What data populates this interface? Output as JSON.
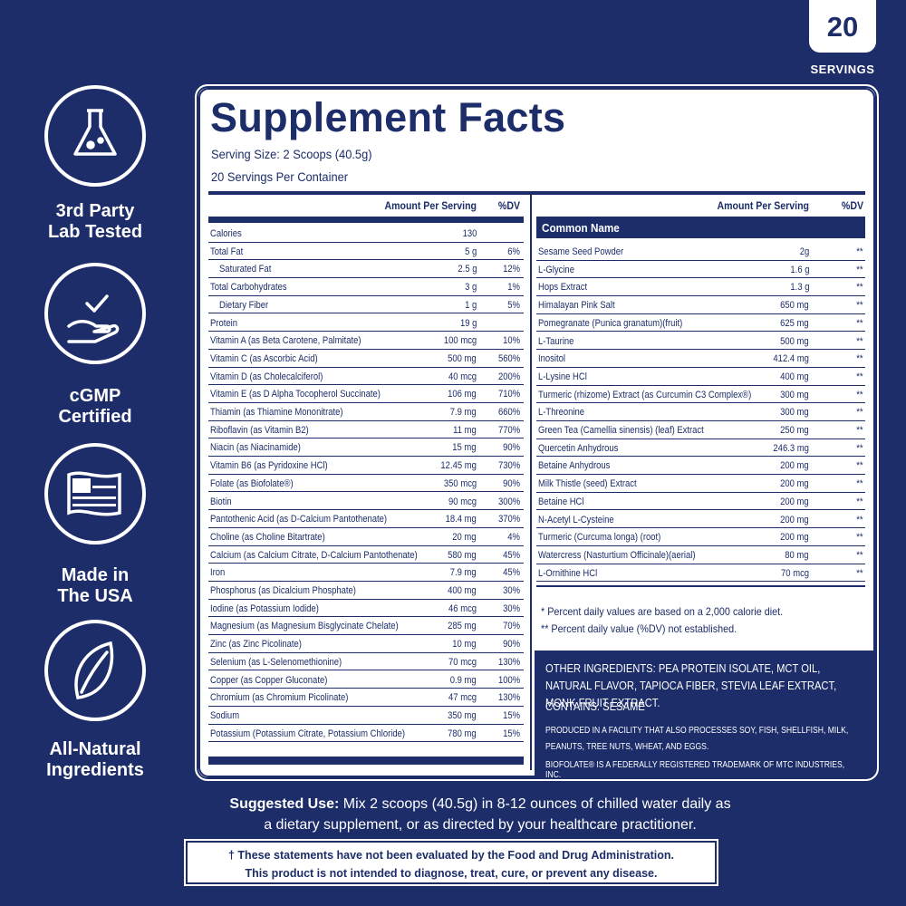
{
  "badge": {
    "number": "20",
    "label": "SERVINGS"
  },
  "features": [
    {
      "lines": [
        "3rd Party",
        "Lab Tested"
      ]
    },
    {
      "lines": [
        "cGMP",
        "Certified"
      ]
    },
    {
      "lines": [
        "Made in",
        "The USA"
      ]
    },
    {
      "lines": [
        "All-Natural",
        "Ingredients"
      ]
    }
  ],
  "facts": {
    "title": "Supplement Facts",
    "serving_size": "Serving Size: 2 Scoops (40.5g)",
    "servings_per_container": "20 Servings Per Container",
    "left_table": {
      "header": [
        "Amount Per Serving",
        "%DV"
      ],
      "rows": [
        [
          "Calories",
          "130"
        ],
        [
          "Total Fat",
          "5 g",
          "6%"
        ],
        [
          "Saturated Fat",
          "2.5 g",
          "12%"
        ],
        [
          "Total Carbohydrates",
          "3 g",
          "1%"
        ],
        [
          "Dietary Fiber",
          "1 g",
          "5%"
        ],
        [
          "Protein",
          "19 g"
        ],
        [
          "Vitamin A (as Beta Carotene, Palmitate)",
          "100 mcg",
          "10%"
        ],
        [
          "Vitamin C (as Ascorbic Acid)",
          "500 mg",
          "560%"
        ],
        [
          "Vitamin D (as Cholecalciferol)",
          "40 mcg",
          "200%"
        ],
        [
          "Vitamin E (as D Alpha Tocopherol Succinate)",
          "106 mg",
          "710%"
        ],
        [
          "Thiamin (as Thiamine Mononitrate)",
          "7.9 mg",
          "660%"
        ],
        [
          "Riboflavin (as Vitamin B2)",
          "11 mg",
          "770%"
        ],
        [
          "Niacin (as Niacinamide)",
          "15 mg",
          "90%"
        ],
        [
          "Vitamin B6 (as Pyridoxine HCl)",
          "12.45 mg",
          "730%"
        ],
        [
          "Folate (as Biofolate®)",
          "350 mcg",
          "90%"
        ],
        [
          "Biotin",
          "90 mcg",
          "300%"
        ],
        [
          "Pantothenic Acid (as D-Calcium Pantothenate)",
          "18.4 mg",
          "370%"
        ],
        [
          "Choline (as Choline Bitartrate)",
          "20 mg",
          "4%"
        ],
        [
          "Calcium (as Calcium Citrate, D-Calcium Pantothenate)",
          "580 mg",
          "45%"
        ],
        [
          "Iron",
          "7.9 mg",
          "45%"
        ],
        [
          "Phosphorus (as Dicalcium Phosphate)",
          "400 mg",
          "30%"
        ],
        [
          "Iodine (as Potassium Iodide)",
          "46 mcg",
          "30%"
        ],
        [
          "Magnesium (as Magnesium Bisglycinate Chelate)",
          "285 mg",
          "70%"
        ],
        [
          "Zinc (as Zinc Picolinate)",
          "10 mg",
          "90%"
        ],
        [
          "Selenium (as L-Selenomethionine)",
          "70 mcg",
          "130%"
        ],
        [
          "Copper (as Copper Gluconate)",
          "0.9 mg",
          "100%"
        ],
        [
          "Chromium (as Chromium Picolinate)",
          "47 mcg",
          "130%"
        ],
        [
          "Sodium",
          "350 mg",
          "15%"
        ],
        [
          "Potassium (Potassium Citrate, Potassium Chloride)",
          "780 mg",
          "15%"
        ]
      ]
    },
    "right_table": {
      "header": [
        "Amount Per Serving",
        "%DV"
      ],
      "subheader": "Common Name",
      "rows": [
        [
          "Sesame Seed Powder",
          "2g",
          "**"
        ],
        [
          "L-Glycine",
          "1.6 g",
          "**"
        ],
        [
          "Hops Extract",
          "1.3 g",
          "**"
        ],
        [
          "Himalayan Pink Salt",
          "650 mg",
          "**"
        ],
        [
          "Pomegranate (Punica granatum)(fruit)",
          "625 mg",
          "**"
        ],
        [
          "L-Taurine",
          "500 mg",
          "**"
        ],
        [
          "Inositol",
          "412.4 mg",
          "**"
        ],
        [
          "L-Lysine HCl",
          "400 mg",
          "**"
        ],
        [
          "Turmeric (rhizome) Extract (as Curcumin C3 Complex®)",
          "300 mg",
          "**"
        ],
        [
          "L-Threonine",
          "300 mg",
          "**"
        ],
        [
          "Green Tea (Camellia sinensis) (leaf) Extract",
          "250 mg",
          "**"
        ],
        [
          "Quercetin Anhydrous",
          "246.3 mg",
          "**"
        ],
        [
          "Betaine Anhydrous",
          "200 mg",
          "**"
        ],
        [
          "Milk Thistle (seed) Extract",
          "200 mg",
          "**"
        ],
        [
          "Betaine HCl",
          "200 mg",
          "**"
        ],
        [
          "N-Acetyl L-Cysteine",
          "200 mg",
          "**"
        ],
        [
          "Turmeric (Curcuma longa) (root)",
          "200 mg",
          "**"
        ],
        [
          "Watercress (Nasturtium Officinale)(aerial)",
          "80 mg",
          "**"
        ],
        [
          "L-Ornithine HCl",
          "70 mcg",
          "**"
        ]
      ]
    },
    "footnotes": [
      "* Percent daily values are based on a 2,000 calorie diet.",
      "** Percent daily value (%DV) not established."
    ],
    "other_ingredients": "OTHER INGREDIENTS: PEA PROTEIN ISOLATE, MCT OIL, NATURAL FLAVOR, TAPIOCA FIBER, STEVIA LEAF EXTRACT, MONK FRUIT EXTRACT.",
    "contains": "CONTAINS: SESAME",
    "facility": "PRODUCED IN A FACILITY THAT ALSO PROCESSES SOY, FISH, SHELLFISH, MILK, PEANUTS, TREE NUTS, WHEAT, AND EGGS.",
    "trademark": "BIOFOLATE® IS A FEDERALLY REGISTERED TRADEMARK OF MTC INDUSTRIES, INC."
  },
  "suggested_use": {
    "label": "Suggested Use:",
    "text": "Mix 2 scoops (40.5g) in 8-12 ounces of chilled water daily as a dietary supplement, or as directed by your healthcare practitioner."
  },
  "disclaimer": [
    "† These statements have not been evaluated by the Food and Drug Administration.",
    "This product is not intended to diagnose, treat, cure, or prevent any disease."
  ]
}
